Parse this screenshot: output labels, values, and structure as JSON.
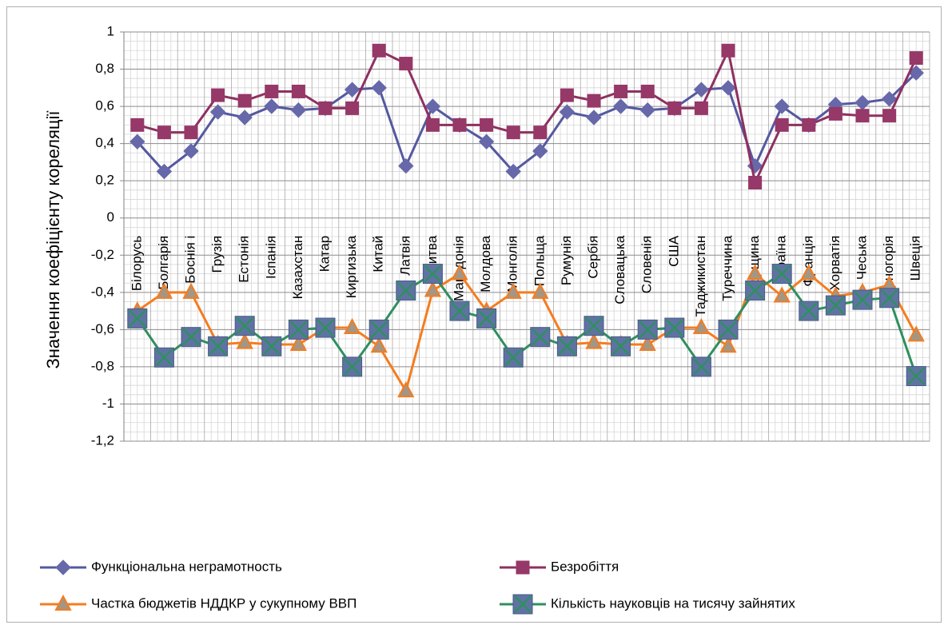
{
  "chart_data": {
    "type": "line",
    "y_label": "Значення коефіцієнту кореляції",
    "categories": [
      "Білорусь",
      "Болгарія",
      "Боснія і",
      "Грузія",
      "Естонія",
      "Іспанія",
      "Казахстан",
      "Катар",
      "Киргизька",
      "Китай",
      "Латвія",
      "Литва",
      "Македонія",
      "Молдова",
      "Монголія",
      "Польща",
      "Румунія",
      "Сербія",
      "Словацька",
      "Словенія",
      "США",
      "Таджикистан",
      "Туреччина",
      "Угорщина",
      "Україна",
      "Франція",
      "Хорватія",
      "Чеська",
      "Чорногорія",
      "Швеція"
    ],
    "series": [
      {
        "name": "Функціональна неграмотность",
        "color": "#5558a0",
        "marker": "diamond",
        "marker_fill": "#6668aa",
        "values": [
          0.41,
          0.25,
          0.36,
          0.57,
          0.54,
          0.6,
          0.58,
          0.59,
          0.69,
          0.7,
          0.28,
          0.6,
          0.5,
          0.41,
          0.25,
          0.36,
          0.57,
          0.54,
          0.6,
          0.58,
          0.59,
          0.69,
          0.7,
          0.28,
          0.6,
          0.5,
          0.61,
          0.62,
          0.64,
          0.78
        ]
      },
      {
        "name": "Безробіття",
        "color": "#8e3060",
        "marker": "square",
        "marker_fill": "#963868",
        "values": [
          0.5,
          0.46,
          0.46,
          0.66,
          0.63,
          0.68,
          0.68,
          0.59,
          0.59,
          0.9,
          0.83,
          0.5,
          0.5,
          0.5,
          0.46,
          0.46,
          0.66,
          0.63,
          0.68,
          0.68,
          0.59,
          0.59,
          0.9,
          0.19,
          0.5,
          0.5,
          0.56,
          0.55,
          0.55,
          0.86
        ]
      },
      {
        "name": "Частка бюджетів НДДКР у сукупному ВВП",
        "color": "#f57c1f",
        "marker": "triangle",
        "marker_fill": "#a39684",
        "values": [
          -0.5,
          -0.4,
          -0.4,
          -0.68,
          -0.67,
          -0.68,
          -0.68,
          -0.59,
          -0.59,
          -0.69,
          -0.93,
          -0.39,
          -0.3,
          -0.5,
          -0.4,
          -0.4,
          -0.68,
          -0.67,
          -0.68,
          -0.68,
          -0.59,
          -0.59,
          -0.69,
          -0.3,
          -0.42,
          -0.3,
          -0.42,
          -0.4,
          -0.36,
          -0.63
        ]
      },
      {
        "name": "Кількість науковців на тисячу зайнятих",
        "color": "#2f8f5f",
        "marker": "square-x",
        "marker_fill": "#5f73a3",
        "values": [
          -0.54,
          -0.75,
          -0.64,
          -0.69,
          -0.58,
          -0.69,
          -0.6,
          -0.59,
          -0.8,
          -0.6,
          -0.39,
          -0.3,
          -0.5,
          -0.54,
          -0.75,
          -0.64,
          -0.69,
          -0.58,
          -0.69,
          -0.6,
          -0.59,
          -0.8,
          -0.6,
          -0.39,
          -0.3,
          -0.5,
          -0.47,
          -0.44,
          -0.43,
          -0.85
        ]
      }
    ],
    "ylim": [
      -1.2,
      1
    ],
    "yticks": [
      {
        "value": -1.2,
        "label": "-1,2"
      },
      -1,
      {
        "value": -0.8,
        "label": "-0,8"
      },
      {
        "value": -0.6,
        "label": "-0,6"
      },
      {
        "value": -0.4,
        "label": "-0,4"
      },
      {
        "value": -0.2,
        "label": "-0,2"
      },
      0,
      {
        "value": 0.2,
        "label": "0,2"
      },
      {
        "value": 0.4,
        "label": "0,4"
      },
      {
        "value": 0.6,
        "label": "0,6"
      },
      {
        "value": 0.8,
        "label": "0,8"
      },
      1
    ],
    "grid": true,
    "legend": "bottom"
  }
}
